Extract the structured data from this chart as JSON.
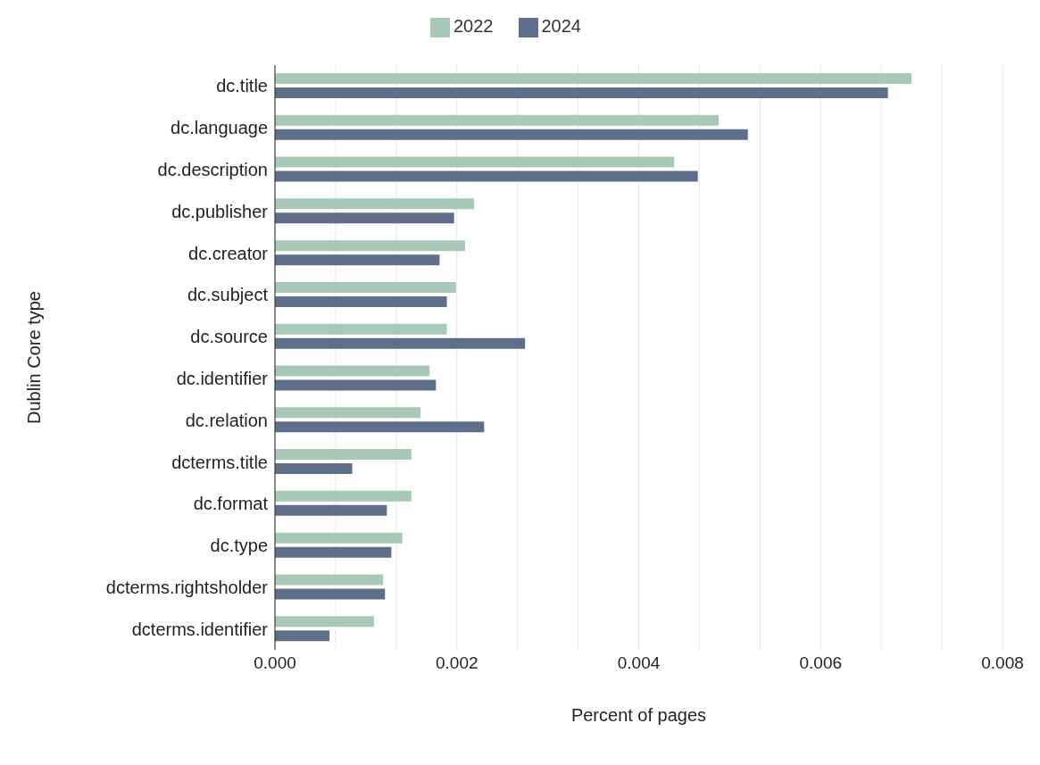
{
  "chart_data": {
    "type": "bar",
    "orientation": "horizontal",
    "xlabel": "Percent of pages",
    "ylabel": "Dublin Core type",
    "categories": [
      "dc.title",
      "dc.language",
      "dc.description",
      "dc.publisher",
      "dc.creator",
      "dc.subject",
      "dc.source",
      "dc.identifier",
      "dc.relation",
      "dcterms.title",
      "dc.format",
      "dc.type",
      "dcterms.rightsholder",
      "dcterms.identifier"
    ],
    "series": [
      {
        "name": "2022",
        "color": "#a8c9b8",
        "values": [
          0.007,
          0.00488,
          0.00439,
          0.00219,
          0.00209,
          0.00199,
          0.00189,
          0.0017,
          0.0016,
          0.0015,
          0.0015,
          0.0014,
          0.00119,
          0.00109
        ]
      },
      {
        "name": "2024",
        "color": "#5f6f8a",
        "values": [
          0.00674,
          0.0052,
          0.00465,
          0.00197,
          0.00181,
          0.00189,
          0.00275,
          0.00177,
          0.0023,
          0.00085,
          0.00123,
          0.00128,
          0.00121,
          0.0006
        ]
      }
    ],
    "xlim": [
      0,
      0.008
    ],
    "xticks": [
      {
        "value": 0,
        "label": "0.000"
      },
      {
        "value": 0.000667,
        "label": null
      },
      {
        "value": 0.001333,
        "label": null
      },
      {
        "value": 0.002,
        "label": "0.002"
      },
      {
        "value": 0.002667,
        "label": null
      },
      {
        "value": 0.003333,
        "label": null
      },
      {
        "value": 0.004,
        "label": "0.004"
      },
      {
        "value": 0.004667,
        "label": null
      },
      {
        "value": 0.005333,
        "label": null
      },
      {
        "value": 0.006,
        "label": "0.006"
      },
      {
        "value": 0.006667,
        "label": null
      },
      {
        "value": 0.007333,
        "label": null
      },
      {
        "value": 0.008,
        "label": "0.008"
      }
    ],
    "grid": "x",
    "legend": "top"
  }
}
